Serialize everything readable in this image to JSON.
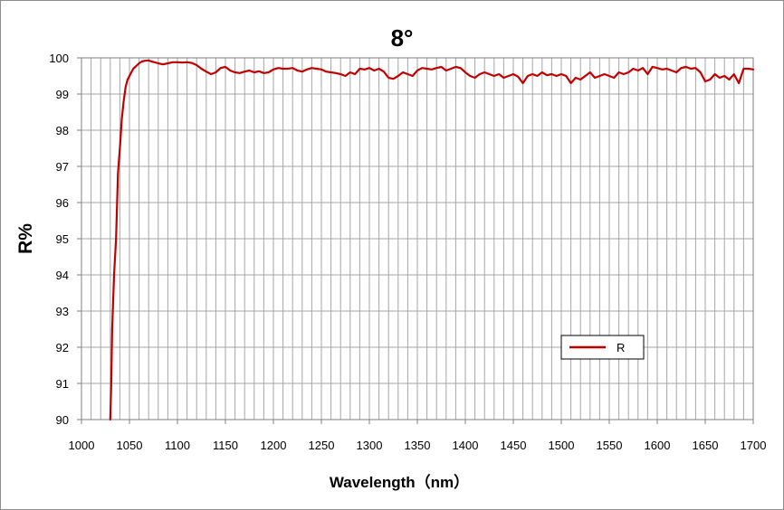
{
  "chart_data": {
    "type": "line",
    "title": "8°",
    "xlabel": "Wavelength（nm）",
    "ylabel": "R%",
    "xlim": [
      1000,
      1700
    ],
    "ylim": [
      90,
      100
    ],
    "x_ticks": [
      1000,
      1050,
      1100,
      1150,
      1200,
      1250,
      1300,
      1350,
      1400,
      1450,
      1500,
      1550,
      1600,
      1650,
      1700
    ],
    "y_ticks": [
      90,
      91,
      92,
      93,
      94,
      95,
      96,
      97,
      98,
      99,
      100
    ],
    "x_minor_step": 10,
    "grid": true,
    "legend_position": "lower-right",
    "series": [
      {
        "name": "R",
        "color": "#c00000",
        "x": [
          1030,
          1031,
          1032,
          1034,
          1036,
          1038,
          1040,
          1042,
          1044,
          1046,
          1048,
          1050,
          1052,
          1054,
          1056,
          1058,
          1060,
          1063,
          1066,
          1070,
          1073,
          1076,
          1080,
          1085,
          1090,
          1095,
          1100,
          1105,
          1110,
          1115,
          1120,
          1125,
          1130,
          1135,
          1140,
          1145,
          1150,
          1155,
          1160,
          1165,
          1170,
          1175,
          1180,
          1185,
          1190,
          1195,
          1200,
          1205,
          1210,
          1215,
          1220,
          1225,
          1230,
          1235,
          1240,
          1245,
          1250,
          1255,
          1260,
          1265,
          1270,
          1275,
          1280,
          1285,
          1290,
          1295,
          1300,
          1305,
          1310,
          1315,
          1320,
          1325,
          1330,
          1335,
          1340,
          1345,
          1350,
          1355,
          1360,
          1365,
          1370,
          1375,
          1380,
          1385,
          1390,
          1395,
          1400,
          1405,
          1410,
          1415,
          1420,
          1425,
          1430,
          1435,
          1440,
          1445,
          1450,
          1455,
          1460,
          1465,
          1470,
          1475,
          1480,
          1485,
          1490,
          1495,
          1500,
          1505,
          1510,
          1515,
          1520,
          1525,
          1530,
          1535,
          1540,
          1545,
          1550,
          1555,
          1560,
          1565,
          1570,
          1575,
          1580,
          1585,
          1590,
          1595,
          1600,
          1605,
          1610,
          1615,
          1620,
          1625,
          1630,
          1635,
          1640,
          1645,
          1650,
          1655,
          1660,
          1665,
          1670,
          1675,
          1680,
          1685,
          1690,
          1695,
          1700
        ],
        "values": [
          90.0,
          91.0,
          92.5,
          94.0,
          95.0,
          96.8,
          97.5,
          98.3,
          98.8,
          99.2,
          99.4,
          99.5,
          99.6,
          99.7,
          99.75,
          99.8,
          99.85,
          99.9,
          99.92,
          99.93,
          99.9,
          99.88,
          99.85,
          99.82,
          99.85,
          99.88,
          99.88,
          99.87,
          99.88,
          99.86,
          99.8,
          99.7,
          99.62,
          99.55,
          99.6,
          99.72,
          99.75,
          99.65,
          99.6,
          99.58,
          99.62,
          99.65,
          99.6,
          99.63,
          99.58,
          99.6,
          99.68,
          99.72,
          99.7,
          99.7,
          99.72,
          99.65,
          99.62,
          99.68,
          99.72,
          99.7,
          99.68,
          99.62,
          99.6,
          99.58,
          99.55,
          99.5,
          99.6,
          99.55,
          99.7,
          99.68,
          99.72,
          99.65,
          99.7,
          99.62,
          99.45,
          99.42,
          99.5,
          99.6,
          99.55,
          99.5,
          99.65,
          99.72,
          99.7,
          99.68,
          99.72,
          99.75,
          99.65,
          99.7,
          99.75,
          99.72,
          99.6,
          99.5,
          99.45,
          99.55,
          99.6,
          99.55,
          99.5,
          99.55,
          99.45,
          99.5,
          99.55,
          99.48,
          99.3,
          99.5,
          99.55,
          99.5,
          99.6,
          99.52,
          99.55,
          99.5,
          99.55,
          99.5,
          99.3,
          99.45,
          99.4,
          99.5,
          99.6,
          99.45,
          99.5,
          99.55,
          99.5,
          99.45,
          99.6,
          99.55,
          99.6,
          99.7,
          99.65,
          99.72,
          99.55,
          99.75,
          99.72,
          99.68,
          99.7,
          99.65,
          99.6,
          99.72,
          99.75,
          99.7,
          99.72,
          99.6,
          99.35,
          99.4,
          99.55,
          99.45,
          99.5,
          99.4,
          99.55,
          99.3,
          99.7,
          99.7,
          99.68
        ]
      }
    ]
  }
}
